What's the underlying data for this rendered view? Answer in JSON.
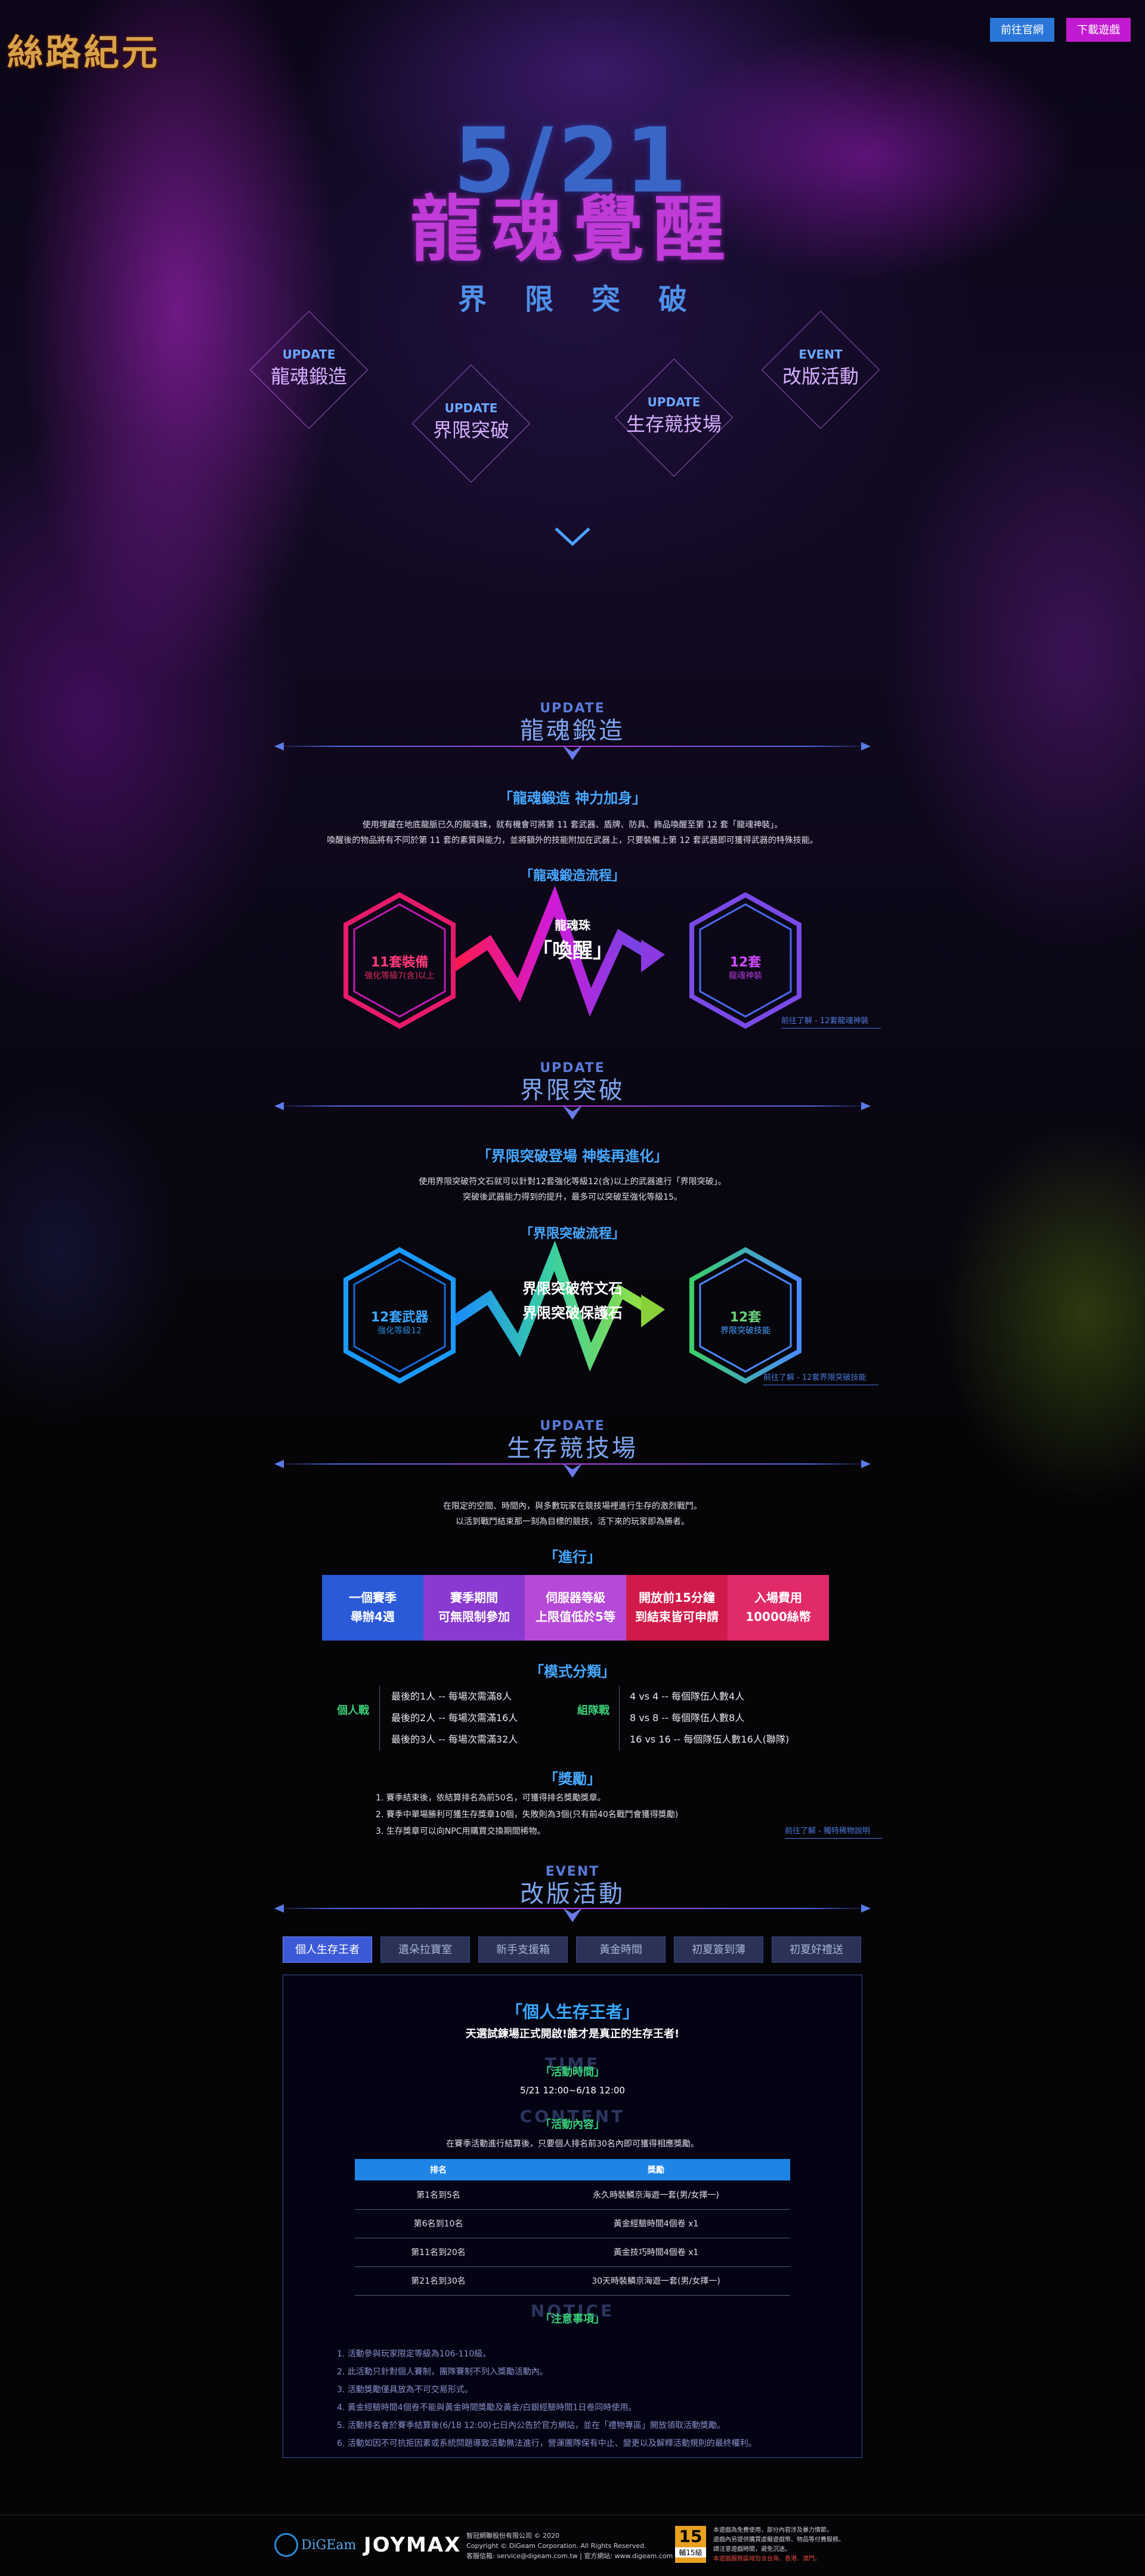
{
  "header": {
    "logo_text": "絲路紀元",
    "btn_official": "前往官網",
    "btn_download": "下載遊戲",
    "btn_official_color": "#2a76d8",
    "btn_download_color": "#c21ad0"
  },
  "hero": {
    "date": "5/21",
    "title": "龍魂覺醒",
    "subtitle": "界限突破",
    "nav": [
      {
        "tag": "UPDATE",
        "label": "龍魂鍛造"
      },
      {
        "tag": "UPDATE",
        "label": "界限突破"
      },
      {
        "tag": "UPDATE",
        "label": "生存競技場"
      },
      {
        "tag": "EVENT",
        "label": "改版活動"
      }
    ],
    "scroll_icon": "chevron-down-icon"
  },
  "forge": {
    "tag": "UPDATE",
    "heading": "龍魂鍛造",
    "subtitle": "「龍魂鍛造 神力加身」",
    "desc1": "使用埋藏在地底龍脈已久的龍魂珠，就有機會可將第 11 套武器、盾牌、防具、飾品喚醒至第 12 套「龍魂神裝」。",
    "desc2": "喚醒後的物品將有不同於第 11 套的素質與能力，並將額外的技能附加在武器上，只要裝備上第 12 套武器即可獲得武器的特殊技能。",
    "flow_title": "「龍魂鍛造流程」",
    "left_title": "11套裝備",
    "left_sub": "強化等級7(含)以上",
    "mid_small": "龍魂珠",
    "mid_big": "「喚醒」",
    "right_title": "12套",
    "right_sub": "龍魂神裝",
    "more": "前往了解 - 12套龍魂神裝"
  },
  "limit": {
    "tag": "UPDATE",
    "heading": "界限突破",
    "subtitle": "「界限突破登場 神裝再進化」",
    "desc1": "使用界限突破符文石就可以針對12套強化等級12(含)以上的武器進行「界限突破」。",
    "desc2": "突破後武器能力得到的提升，最多可以突破至強化等級15。",
    "flow_title": "「界限突破流程」",
    "left_title": "12套武器",
    "left_sub": "強化等級12",
    "mid_line1": "界限突破符文石",
    "mid_line2": "界限突破保護石",
    "right_title": "12套",
    "right_sub": "界限突破技能",
    "more": "前往了解 - 12套界限突破技能"
  },
  "arena": {
    "tag": "UPDATE",
    "heading": "生存競技場",
    "desc1": "在限定的空間、時間內，與多數玩家在競技場裡進行生存的激烈戰鬥。",
    "desc2": "以活到戰鬥結束那一刻為目標的競技，活下來的玩家即為勝者。",
    "progress_title": "「進行」",
    "boxes": [
      {
        "line1": "一個賽季",
        "line2": "舉辦4週",
        "color": "#2a5ad8"
      },
      {
        "line1": "賽季期間",
        "line2": "可無限制參加",
        "color": "#8a3ad0"
      },
      {
        "line1": "伺服器等級",
        "line2": "上限值低於5等",
        "color": "#b64ad8"
      },
      {
        "line1": "開放前15分鐘",
        "line2": "到結束皆可申請",
        "color": "#d01a4a"
      },
      {
        "line1": "入場費用",
        "line2": "10000絲幣",
        "color": "#e02a6a"
      }
    ],
    "modes_title": "「模式分類」",
    "solo_label": "個人戰",
    "solo": [
      "最後的1人 -- 每場次需滿8人",
      "最後的2人 -- 每場次需滿16人",
      "最後的3人 -- 每場次需滿32人"
    ],
    "team_label": "組隊戰",
    "team": [
      "4 vs 4 -- 每個隊伍人數4人",
      "8 vs 8 -- 每個隊伍人數8人",
      "16 vs 16 -- 每個隊伍人數16人(聯隊)"
    ],
    "reward_title": "「獎勵」",
    "rewards": [
      "1. 賽季結束後，依結算排名為前50名，可獲得排名獎勵獎章。",
      "2. 賽季中單場勝利可獲生存獎章10個，失敗則為3個(只有前40名戰鬥會獲得獎勵)",
      "3. 生存獎章可以向NPC用購買交換期間稀物。"
    ],
    "more": "前往了解 - 獨特稀物說明"
  },
  "events": {
    "tag": "EVENT",
    "heading": "改版活動",
    "tabs": [
      "個人生存王者",
      "遺朵拉寶室",
      "新手支援箱",
      "黃金時間",
      "初夏簽到薄",
      "初夏好禮送"
    ],
    "panel": {
      "title": "「個人生存王者」",
      "tagline": "天選試鍊場正式開啟!誰才是真正的生存王者!",
      "time_bg": "TIME",
      "time_title": "「活動時間」",
      "time_value": "5/21 12:00~6/18 12:00",
      "content_bg": "CONTENT",
      "content_title": "「活動內容」",
      "content_desc": "在賽季活動進行結算後，只要個人排名前30名內即可獲得相應獎勵。",
      "table_headers": [
        "排名",
        "獎勵"
      ],
      "rows": [
        [
          "第1名到5名",
          "永久時裝鱗京海遊一套(男/女擇一)"
        ],
        [
          "第6名到10名",
          "黃金經驗時間4個卷 x1"
        ],
        [
          "第11名到20名",
          "黃金技巧時間4個卷 x1"
        ],
        [
          "第21名到30名",
          "30天時裝鱗京海遊一套(男/女擇一)"
        ]
      ],
      "notice_bg": "NOTICE",
      "notice_title": "「注意事項」",
      "notes": [
        "1. 活動參與玩家限定等級為106-110級。",
        "2. 此活動只針對個人賽制，團隊賽制不列入獎勵活動內。",
        "3. 活動獎勵僅具放為不可交易形式。",
        "4. 黃金經驗時間4個卷不能與黃金時間獎勵及黃金/白銀經驗時間1日卷同時使用。",
        "5. 活動排名會於賽季結算後(6/18 12:00)七日內公告於官方網站，並在「禮物專區」開放領取活動獎勵。",
        "6. 活動如因不可抗拒因素或系統問題導致活動無法進行，營運團隊保有中止、變更以及解釋活動規則的最終權利。"
      ]
    }
  },
  "footer": {
    "brand1": "DiGEam",
    "brand2": "JOYMAX",
    "company": "智冠網聯股份有限公司 © 2020",
    "copyright": "Copyright © DiGeam Corporation. All Rights Reserved.",
    "service": "客服信箱: service@digeam.com.tw | 官方網站: www.digeam.com",
    "rating_num": "15",
    "rating_label": "輔15級",
    "rating_text": [
      "本遊戲為免費使用，部分內容涉及暴力情節。",
      "遊戲內另提供購買虛擬遊戲幣、物品等付費服務。",
      "請注意遊戲時間，避免沉迷。",
      "本遊戲服務區域包含台灣、香港、澳門。"
    ]
  }
}
